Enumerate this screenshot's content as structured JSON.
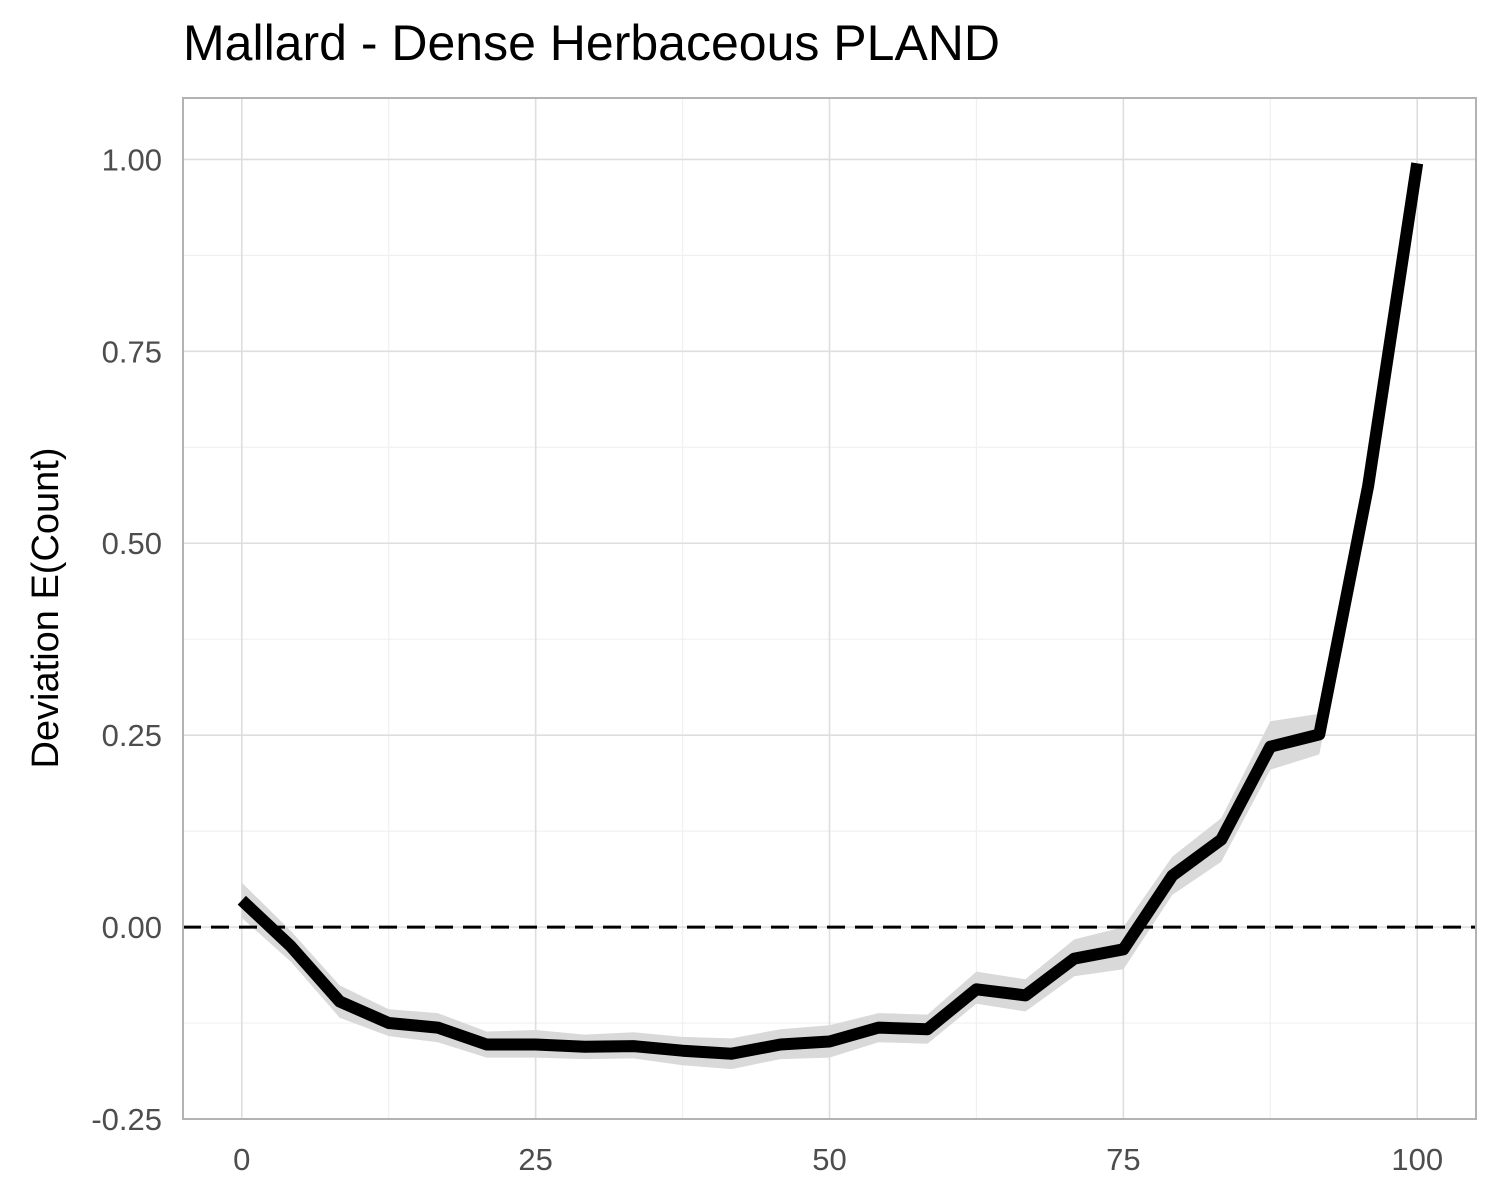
{
  "chart_data": {
    "type": "line",
    "title": "Mallard - Dense Herbaceous PLAND",
    "xlabel": "",
    "ylabel": "Deviation E(Count)",
    "xlim": [
      -5,
      105
    ],
    "ylim": [
      -0.25,
      1.08
    ],
    "x_ticks": [
      0,
      25,
      50,
      75,
      100
    ],
    "x_tick_labels": [
      "0",
      "25",
      "50",
      "75",
      "100"
    ],
    "y_ticks": [
      -0.25,
      0,
      0.25,
      0.5,
      0.75,
      1
    ],
    "y_tick_labels": [
      "-0.25",
      "0.00",
      "0.25",
      "0.50",
      "0.75",
      "1.00"
    ],
    "grid": true,
    "reference_line": {
      "y": 0,
      "style": "dashed",
      "color": "#000000"
    },
    "series": [
      {
        "color": "#000000",
        "band_color": "#d9d9d9",
        "x": [
          0,
          4.17,
          8.33,
          12.5,
          16.67,
          20.83,
          25,
          29.17,
          33.33,
          37.5,
          41.67,
          45.83,
          50,
          54.17,
          58.33,
          62.5,
          66.67,
          70.83,
          75,
          79.17,
          83.33,
          87.5,
          91.67,
          95.83,
          100
        ],
        "y": [
          0.035,
          -0.025,
          -0.097,
          -0.125,
          -0.131,
          -0.153,
          -0.153,
          -0.156,
          -0.155,
          -0.161,
          -0.165,
          -0.153,
          -0.149,
          -0.131,
          -0.133,
          -0.081,
          -0.089,
          -0.041,
          -0.029,
          0.067,
          0.114,
          0.235,
          0.251,
          0.575,
          0.995
        ],
        "lower": [
          0.012,
          -0.045,
          -0.118,
          -0.142,
          -0.15,
          -0.17,
          -0.17,
          -0.172,
          -0.171,
          -0.18,
          -0.185,
          -0.172,
          -0.17,
          -0.15,
          -0.152,
          -0.1,
          -0.11,
          -0.064,
          -0.055,
          0.042,
          0.085,
          0.205,
          0.225,
          0.56,
          0.985
        ],
        "upper": [
          0.058,
          -0.005,
          -0.076,
          -0.107,
          -0.112,
          -0.136,
          -0.134,
          -0.14,
          -0.137,
          -0.143,
          -0.145,
          -0.133,
          -0.128,
          -0.112,
          -0.114,
          -0.058,
          -0.068,
          -0.016,
          0.0,
          0.092,
          0.142,
          0.268,
          0.278,
          0.59,
          1.005
        ]
      }
    ]
  }
}
